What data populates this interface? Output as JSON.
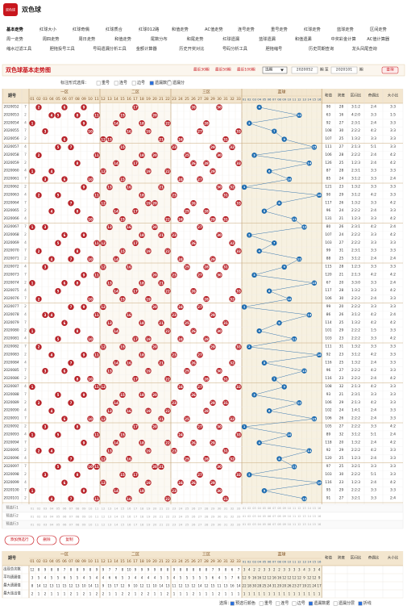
{
  "header": {
    "logo": "双色球",
    "title": "双色球"
  },
  "nav": [
    [
      "基本走势",
      "红球大小",
      "红球奇偶",
      "红球质合",
      "红球012路",
      "和值走势",
      "AC值走势",
      "连号走势",
      "重号走势",
      "红球走势",
      "蓝球走势",
      "区间走势"
    ],
    [
      "周一走势",
      "周四走势",
      "周日走势",
      "和值走势",
      "尾数分布",
      "和尾走势",
      "红球遗漏",
      "蓝球遗漏",
      "和值遗漏",
      "中奖彩金计算",
      "AC值计算器"
    ],
    [
      "缩水过滤工具",
      "胆拖投号工具",
      "号码遗漏分析工具",
      "金额计算器",
      "历史开奖对比",
      "号码分析工具",
      "胆拖缩号",
      "历史同期查询",
      "龙头凤尾查询"
    ]
  ],
  "toolbar": {
    "title": "双色球基本走势图",
    "quick": [
      "最近30期",
      "最近50期",
      "最近100期"
    ],
    "select": "选期",
    "from": "2020052",
    "to_label": "期 至",
    "to": "2020101",
    "unit": "期",
    "button": "查询"
  },
  "options": {
    "label": "标注形式选择：",
    "items": [
      "重号",
      "连号",
      "边号",
      "遗漏数据",
      "遗漏分"
    ],
    "checked": [
      false,
      false,
      false,
      true,
      false
    ]
  },
  "table": {
    "period_label": "期号",
    "zones": [
      "一区",
      "二区",
      "三区",
      "蓝球"
    ],
    "red_numbers": [
      "01",
      "02",
      "03",
      "04",
      "05",
      "06",
      "07",
      "08",
      "09",
      "10",
      "11",
      "12",
      "13",
      "14",
      "15",
      "16",
      "17",
      "18",
      "19",
      "20",
      "21",
      "22",
      "23",
      "24",
      "25",
      "26",
      "27",
      "28",
      "29",
      "30",
      "31",
      "32",
      "33"
    ],
    "blue_numbers": [
      "01",
      "02",
      "03",
      "04",
      "05",
      "06",
      "07",
      "08",
      "09",
      "10",
      "11",
      "12",
      "13",
      "14",
      "15",
      "16"
    ],
    "stat_headers": [
      "和值",
      "跨度",
      "区间比",
      "奇偶比",
      "大小比"
    ],
    "periods": [
      "2020052",
      "2020053",
      "2020054",
      "2020055",
      "2020056",
      "2020057",
      "2020058",
      "2020059",
      "2020060",
      "2020061",
      "2020062",
      "2020063",
      "2020064",
      "2020065",
      "2020066",
      "2020067",
      "2020068",
      "2020069",
      "2020070",
      "2020071",
      "2020072",
      "2020073",
      "2020074",
      "2020075",
      "2020076",
      "2020077",
      "2020078",
      "2020079",
      "2020080",
      "2020081",
      "2020082",
      "2020083",
      "2020084",
      "2020085",
      "2020086",
      "2020087",
      "2020088",
      "2020089",
      "2020090",
      "2020091",
      "2020092",
      "2020093",
      "2020094",
      "2020095",
      "2020096",
      "2020097",
      "2020098",
      "2020099",
      "2020100",
      "2020101"
    ],
    "tags": [
      7,
      2,
      4,
      7,
      2,
      4,
      7,
      2,
      4,
      7,
      2,
      4,
      7,
      2,
      4,
      7,
      2,
      4,
      7,
      2,
      4,
      7,
      2,
      4,
      7,
      2,
      4,
      7,
      2,
      4,
      7,
      2,
      4,
      7,
      2,
      4,
      7,
      2,
      4,
      7,
      2,
      4,
      7,
      2,
      4,
      7,
      2,
      4,
      7,
      2
    ],
    "reds": [
      [
        2,
        6,
        9,
        17,
        26,
        30
      ],
      [
        4,
        5,
        8,
        11,
        15,
        20
      ],
      [
        1,
        9,
        14,
        18,
        22,
        28
      ],
      [
        3,
        10,
        16,
        19,
        27,
        33
      ],
      [
        6,
        12,
        13,
        21,
        24,
        31
      ],
      [
        5,
        7,
        15,
        23,
        29,
        32
      ],
      [
        2,
        11,
        18,
        20,
        25,
        30
      ],
      [
        8,
        14,
        17,
        26,
        28,
        33
      ],
      [
        1,
        4,
        12,
        19,
        22,
        29
      ],
      [
        3,
        6,
        10,
        15,
        24,
        27
      ],
      [
        9,
        13,
        16,
        21,
        30,
        32
      ],
      [
        2,
        5,
        11,
        18,
        23,
        31
      ],
      [
        7,
        12,
        19,
        20,
        26,
        33
      ],
      [
        4,
        8,
        14,
        17,
        25,
        28
      ],
      [
        10,
        15,
        22,
        24,
        29,
        31
      ],
      [
        1,
        3,
        13,
        16,
        20,
        27
      ],
      [
        6,
        9,
        18,
        21,
        23,
        30
      ],
      [
        5,
        11,
        12,
        17,
        26,
        32
      ],
      [
        2,
        8,
        15,
        19,
        22,
        33
      ],
      [
        4,
        7,
        10,
        14,
        24,
        29
      ],
      [
        3,
        12,
        16,
        25,
        28,
        31
      ],
      [
        9,
        11,
        20,
        23,
        27,
        30
      ],
      [
        1,
        6,
        8,
        13,
        18,
        21
      ],
      [
        5,
        14,
        17,
        22,
        26,
        33
      ],
      [
        2,
        10,
        15,
        19,
        28,
        32
      ],
      [
        7,
        9,
        12,
        20,
        24,
        27
      ],
      [
        3,
        4,
        11,
        16,
        23,
        29
      ],
      [
        6,
        13,
        18,
        21,
        25,
        31
      ],
      [
        1,
        8,
        14,
        22,
        26,
        30
      ],
      [
        5,
        10,
        17,
        19,
        24,
        28
      ],
      [
        2,
        12,
        15,
        20,
        29,
        33
      ],
      [
        4,
        9,
        11,
        18,
        23,
        27
      ],
      [
        7,
        14,
        16,
        21,
        26,
        32
      ],
      [
        3,
        6,
        13,
        19,
        25,
        30
      ],
      [
        8,
        10,
        17,
        22,
        28,
        31
      ],
      [
        1,
        11,
        12,
        24,
        27,
        33
      ],
      [
        5,
        9,
        15,
        18,
        20,
        26
      ],
      [
        2,
        7,
        14,
        23,
        29,
        31
      ],
      [
        4,
        13,
        16,
        19,
        22,
        28
      ],
      [
        6,
        10,
        12,
        21,
        25,
        32
      ],
      [
        3,
        8,
        17,
        20,
        27,
        30
      ],
      [
        1,
        5,
        11,
        15,
        24,
        33
      ],
      [
        9,
        14,
        18,
        22,
        26,
        29
      ],
      [
        2,
        4,
        13,
        19,
        23,
        31
      ],
      [
        7,
        12,
        16,
        25,
        28,
        32
      ],
      [
        5,
        10,
        11,
        20,
        21,
        30
      ],
      [
        3,
        8,
        15,
        17,
        27,
        33
      ],
      [
        6,
        12,
        19,
        24,
        26,
        29
      ],
      [
        1,
        9,
        14,
        18,
        23,
        30
      ],
      [
        4,
        7,
        11,
        16,
        22,
        31
      ]
    ],
    "blues": [
      4,
      12,
      2,
      7,
      9,
      15,
      3,
      14,
      6,
      10,
      1,
      16,
      8,
      5,
      11,
      13,
      2,
      7,
      4,
      12,
      9,
      3,
      15,
      6,
      10,
      1,
      14,
      8,
      4,
      11,
      2,
      16,
      5,
      13,
      7,
      9,
      3,
      12,
      6,
      15,
      1,
      10,
      4,
      14,
      8,
      11,
      2,
      16,
      5,
      13
    ],
    "sums": [
      90,
      63,
      92,
      108,
      107,
      111,
      106,
      126,
      87,
      85,
      121,
      90,
      117,
      96,
      131,
      80,
      107,
      103,
      99,
      88,
      115,
      120,
      67,
      117,
      106,
      99,
      86,
      114,
      101,
      103,
      111,
      92,
      116,
      96,
      116,
      108,
      93,
      106,
      102,
      106,
      105,
      89,
      118,
      92,
      120,
      97,
      103,
      116,
      95,
      91
    ],
    "spans": [
      28,
      16,
      27,
      30,
      25,
      27,
      28,
      25,
      28,
      24,
      23,
      29,
      26,
      24,
      21,
      26,
      24,
      27,
      31,
      25,
      28,
      21,
      20,
      28,
      30,
      20,
      26,
      25,
      29,
      23,
      31,
      23,
      25,
      27,
      23,
      32,
      21,
      29,
      24,
      26,
      27,
      32,
      20,
      29,
      25,
      25,
      30,
      23,
      29,
      27
    ],
    "zones_ratio": [
      "3:1:2",
      "4:2:0",
      "2:3:1",
      "2:2:2",
      "1:3:2",
      "2:1:3",
      "2:2:2",
      "1:2:3",
      "2:3:1",
      "3:1:2",
      "1:3:2",
      "3:1:2",
      "1:3:2",
      "2:2:2",
      "1:2:3",
      "2:3:1",
      "2:2:2",
      "2:2:2",
      "2:3:1",
      "3:1:2",
      "1:2:3",
      "2:1:3",
      "3:3:0",
      "1:3:2",
      "2:2:2",
      "2:2:2",
      "3:1:2",
      "1:3:2",
      "2:2:2",
      "2:2:2",
      "1:3:2",
      "3:1:2",
      "1:3:2",
      "2:2:2",
      "2:2:2",
      "2:1:3",
      "2:3:1",
      "2:1:3",
      "1:4:1",
      "2:2:2",
      "2:2:2",
      "3:1:2",
      "1:3:2",
      "2:2:2",
      "1:2:3",
      "3:2:1",
      "2:2:2",
      "1:2:3",
      "2:2:2",
      "3:2:1"
    ],
    "odd_even": [
      "2:4",
      "3:3",
      "2:4",
      "4:2",
      "3:3",
      "5:1",
      "2:4",
      "2:4",
      "3:3",
      "3:3",
      "3:3",
      "4:2",
      "3:3",
      "2:4",
      "3:3",
      "4:2",
      "3:3",
      "3:3",
      "3:3",
      "2:4",
      "3:3",
      "4:2",
      "3:3",
      "3:3",
      "2:4",
      "3:3",
      "4:2",
      "4:2",
      "1:5",
      "3:3",
      "3:3",
      "4:2",
      "2:4",
      "4:2",
      "2:4",
      "4:2",
      "3:3",
      "4:2",
      "2:4",
      "2:4",
      "3:3",
      "5:1",
      "2:4",
      "4:2",
      "2:4",
      "3:3",
      "5:1",
      "2:4",
      "3:3",
      "3:3"
    ],
    "big_small": [
      "3:3",
      "1:5",
      "3:3",
      "3:3",
      "3:3",
      "3:3",
      "4:2",
      "4:2",
      "3:3",
      "2:4",
      "3:3",
      "3:3",
      "4:2",
      "3:3",
      "4:2",
      "2:4",
      "4:2",
      "3:3",
      "3:3",
      "2:4",
      "3:3",
      "4:2",
      "2:4",
      "4:2",
      "3:3",
      "3:3",
      "2:4",
      "4:2",
      "3:3",
      "4:2",
      "3:3",
      "3:3",
      "3:3",
      "3:3",
      "4:2",
      "3:3",
      "3:3",
      "3:3",
      "3:3",
      "3:3",
      "4:2",
      "2:4",
      "4:2",
      "3:3",
      "3:3",
      "3:3",
      "3:3",
      "4:2",
      "3:3",
      "2:4"
    ],
    "preselect_labels": [
      "预选行1",
      "预选行2",
      "预选行3"
    ]
  },
  "buttons": [
    "添加预选行",
    "删除",
    "复制"
  ],
  "bottom_stats": {
    "labels": [
      "出现总次数",
      "平均遗漏值",
      "最大遗漏值",
      "最大连出值"
    ],
    "values": [
      [
        12,
        8,
        9,
        8,
        8,
        7,
        8,
        8,
        9,
        8,
        9,
        9,
        7,
        7,
        8,
        10,
        9,
        9,
        9,
        9,
        8,
        8,
        9,
        8,
        8,
        8,
        8,
        8,
        7,
        9,
        8,
        6,
        7,
        3,
        4,
        2,
        2,
        3,
        3,
        2,
        2,
        3,
        3,
        3,
        3,
        4,
        3,
        3,
        4
      ],
      [
        3,
        5,
        4,
        5,
        5,
        6,
        5,
        5,
        4,
        5,
        4,
        4,
        6,
        6,
        5,
        3,
        4,
        4,
        4,
        4,
        5,
        5,
        4,
        5,
        5,
        5,
        5,
        5,
        6,
        4,
        5,
        7,
        6,
        12,
        9,
        16,
        16,
        12,
        12,
        16,
        16,
        12,
        12,
        12,
        12,
        9,
        12,
        12,
        9
      ],
      [
        8,
        14,
        12,
        13,
        11,
        15,
        12,
        13,
        10,
        14,
        11,
        9,
        15,
        17,
        12,
        9,
        10,
        12,
        11,
        10,
        14,
        13,
        11,
        12,
        13,
        12,
        14,
        12,
        15,
        11,
        13,
        16,
        14,
        22,
        18,
        30,
        28,
        25,
        24,
        31,
        29,
        20,
        26,
        23,
        27,
        19,
        21,
        24,
        17
      ],
      [
        2,
        1,
        2,
        1,
        1,
        1,
        2,
        1,
        2,
        1,
        2,
        2,
        1,
        1,
        2,
        2,
        1,
        2,
        2,
        1,
        1,
        2,
        1,
        1,
        1,
        2,
        1,
        1,
        1,
        2,
        1,
        1,
        1,
        1,
        1,
        1,
        1,
        1,
        1,
        1,
        1,
        1,
        1,
        1,
        1,
        1,
        1,
        1,
        1
      ]
    ]
  },
  "footer": {
    "label": "选择：",
    "items": [
      "预选行颜色",
      "重号",
      "连号",
      "边号",
      "遗漏数据",
      "遗漏分层",
      "折线"
    ],
    "checked": [
      true,
      false,
      false,
      false,
      true,
      false,
      true
    ]
  }
}
